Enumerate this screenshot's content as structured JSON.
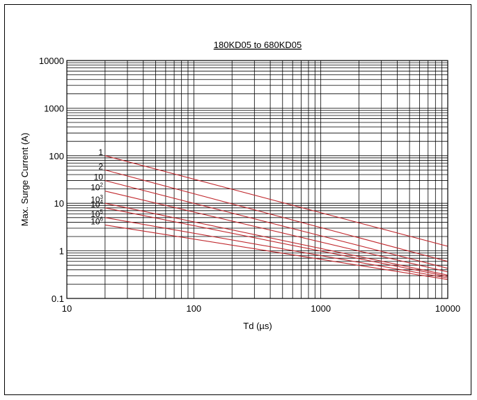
{
  "chart_data": {
    "type": "line",
    "title": "180KD05 to 680KD05",
    "xlabel": "Td (µs)",
    "ylabel": "Max. Surge Current (A)",
    "x_scale": "log",
    "y_scale": "log",
    "xlim": [
      10,
      10000
    ],
    "ylim": [
      0.1,
      10000
    ],
    "x_ticks": [
      "10",
      "100",
      "1000",
      "10000"
    ],
    "y_ticks": [
      "0.1",
      "1",
      "10",
      "100",
      "1000",
      "10000"
    ],
    "grid": true,
    "line_color": "#c0282d",
    "series": [
      {
        "name": "1",
        "label": {
          "base": "1",
          "exp": ""
        },
        "x": [
          20,
          10000
        ],
        "y": [
          100,
          1.25
        ]
      },
      {
        "name": "2",
        "label": {
          "base": "2",
          "exp": ""
        },
        "x": [
          20,
          10000
        ],
        "y": [
          50,
          0.6
        ]
      },
      {
        "name": "10",
        "label": {
          "base": "10",
          "exp": ""
        },
        "x": [
          20,
          10000
        ],
        "y": [
          30,
          0.43
        ]
      },
      {
        "name": "10^2",
        "label": {
          "base": "10",
          "exp": "2"
        },
        "x": [
          20,
          10000
        ],
        "y": [
          18,
          0.36
        ]
      },
      {
        "name": "10^3",
        "label": {
          "base": "10",
          "exp": "3"
        },
        "x": [
          20,
          10000
        ],
        "y": [
          10,
          0.31
        ]
      },
      {
        "name": "10^4",
        "label": {
          "base": "10",
          "exp": "4"
        },
        "x": [
          20,
          10000
        ],
        "y": [
          8,
          0.29
        ]
      },
      {
        "name": "10^5",
        "label": {
          "base": "10",
          "exp": "5"
        },
        "x": [
          20,
          10000
        ],
        "y": [
          5,
          0.27
        ]
      },
      {
        "name": "10^6",
        "label": {
          "base": "10",
          "exp": "6"
        },
        "x": [
          20,
          10000
        ],
        "y": [
          3.5,
          0.25
        ]
      }
    ]
  }
}
